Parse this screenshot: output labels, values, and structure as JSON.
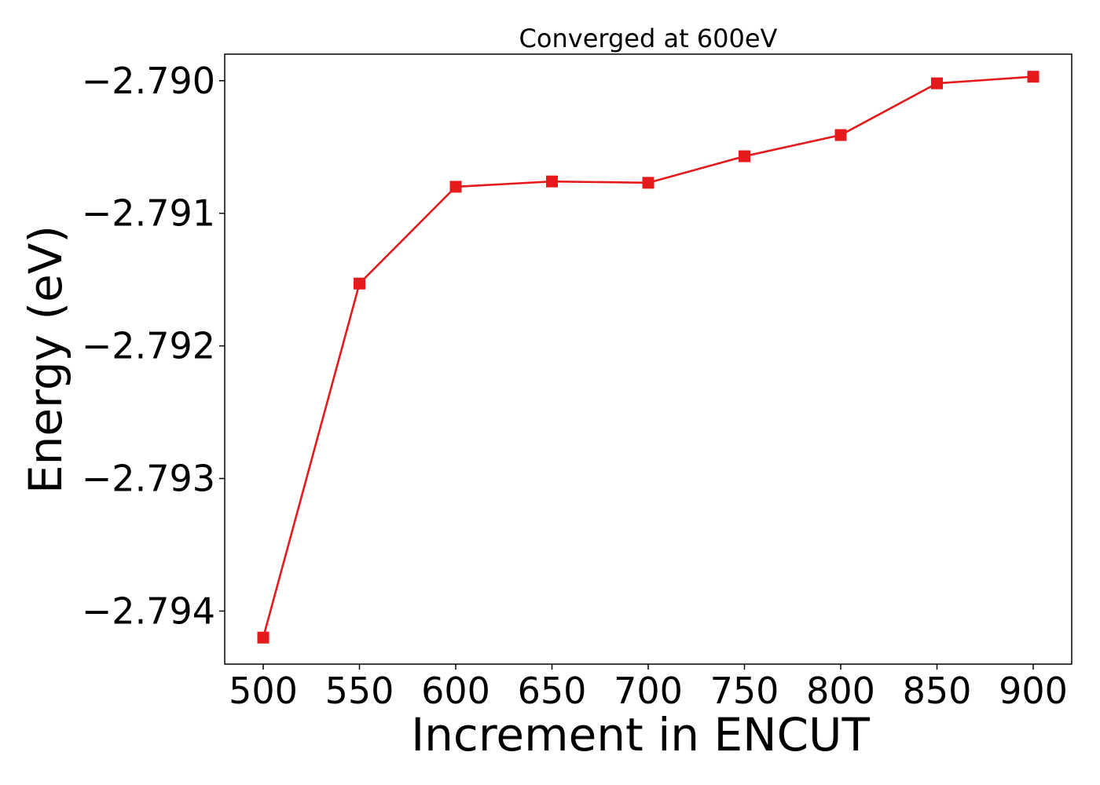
{
  "chart_data": {
    "type": "line",
    "title": "Converged at 600eV",
    "xlabel": "Increment in ENCUT",
    "ylabel": "Energy (eV)",
    "x": [
      500,
      550,
      600,
      650,
      700,
      750,
      800,
      850,
      900
    ],
    "xticks": [
      500,
      550,
      600,
      650,
      700,
      750,
      800,
      850,
      900
    ],
    "xtick_labels": [
      "500",
      "550",
      "600",
      "650",
      "700",
      "750",
      "800",
      "850",
      "900"
    ],
    "xlim": [
      480,
      920
    ],
    "yticks": [
      -2.794,
      -2.793,
      -2.792,
      -2.791,
      -2.79
    ],
    "ytick_labels": [
      "−2.794",
      "−2.793",
      "−2.792",
      "−2.791",
      "−2.790"
    ],
    "ylim": [
      -2.7944,
      -2.7898
    ],
    "grid": false,
    "series": [
      {
        "values": [
          -2.7942,
          -2.79153,
          -2.7908,
          -2.79076,
          -2.79077,
          -2.79057,
          -2.79041,
          -2.79002,
          -2.78997
        ],
        "color": "#e41a1c",
        "marker": "square"
      }
    ]
  }
}
